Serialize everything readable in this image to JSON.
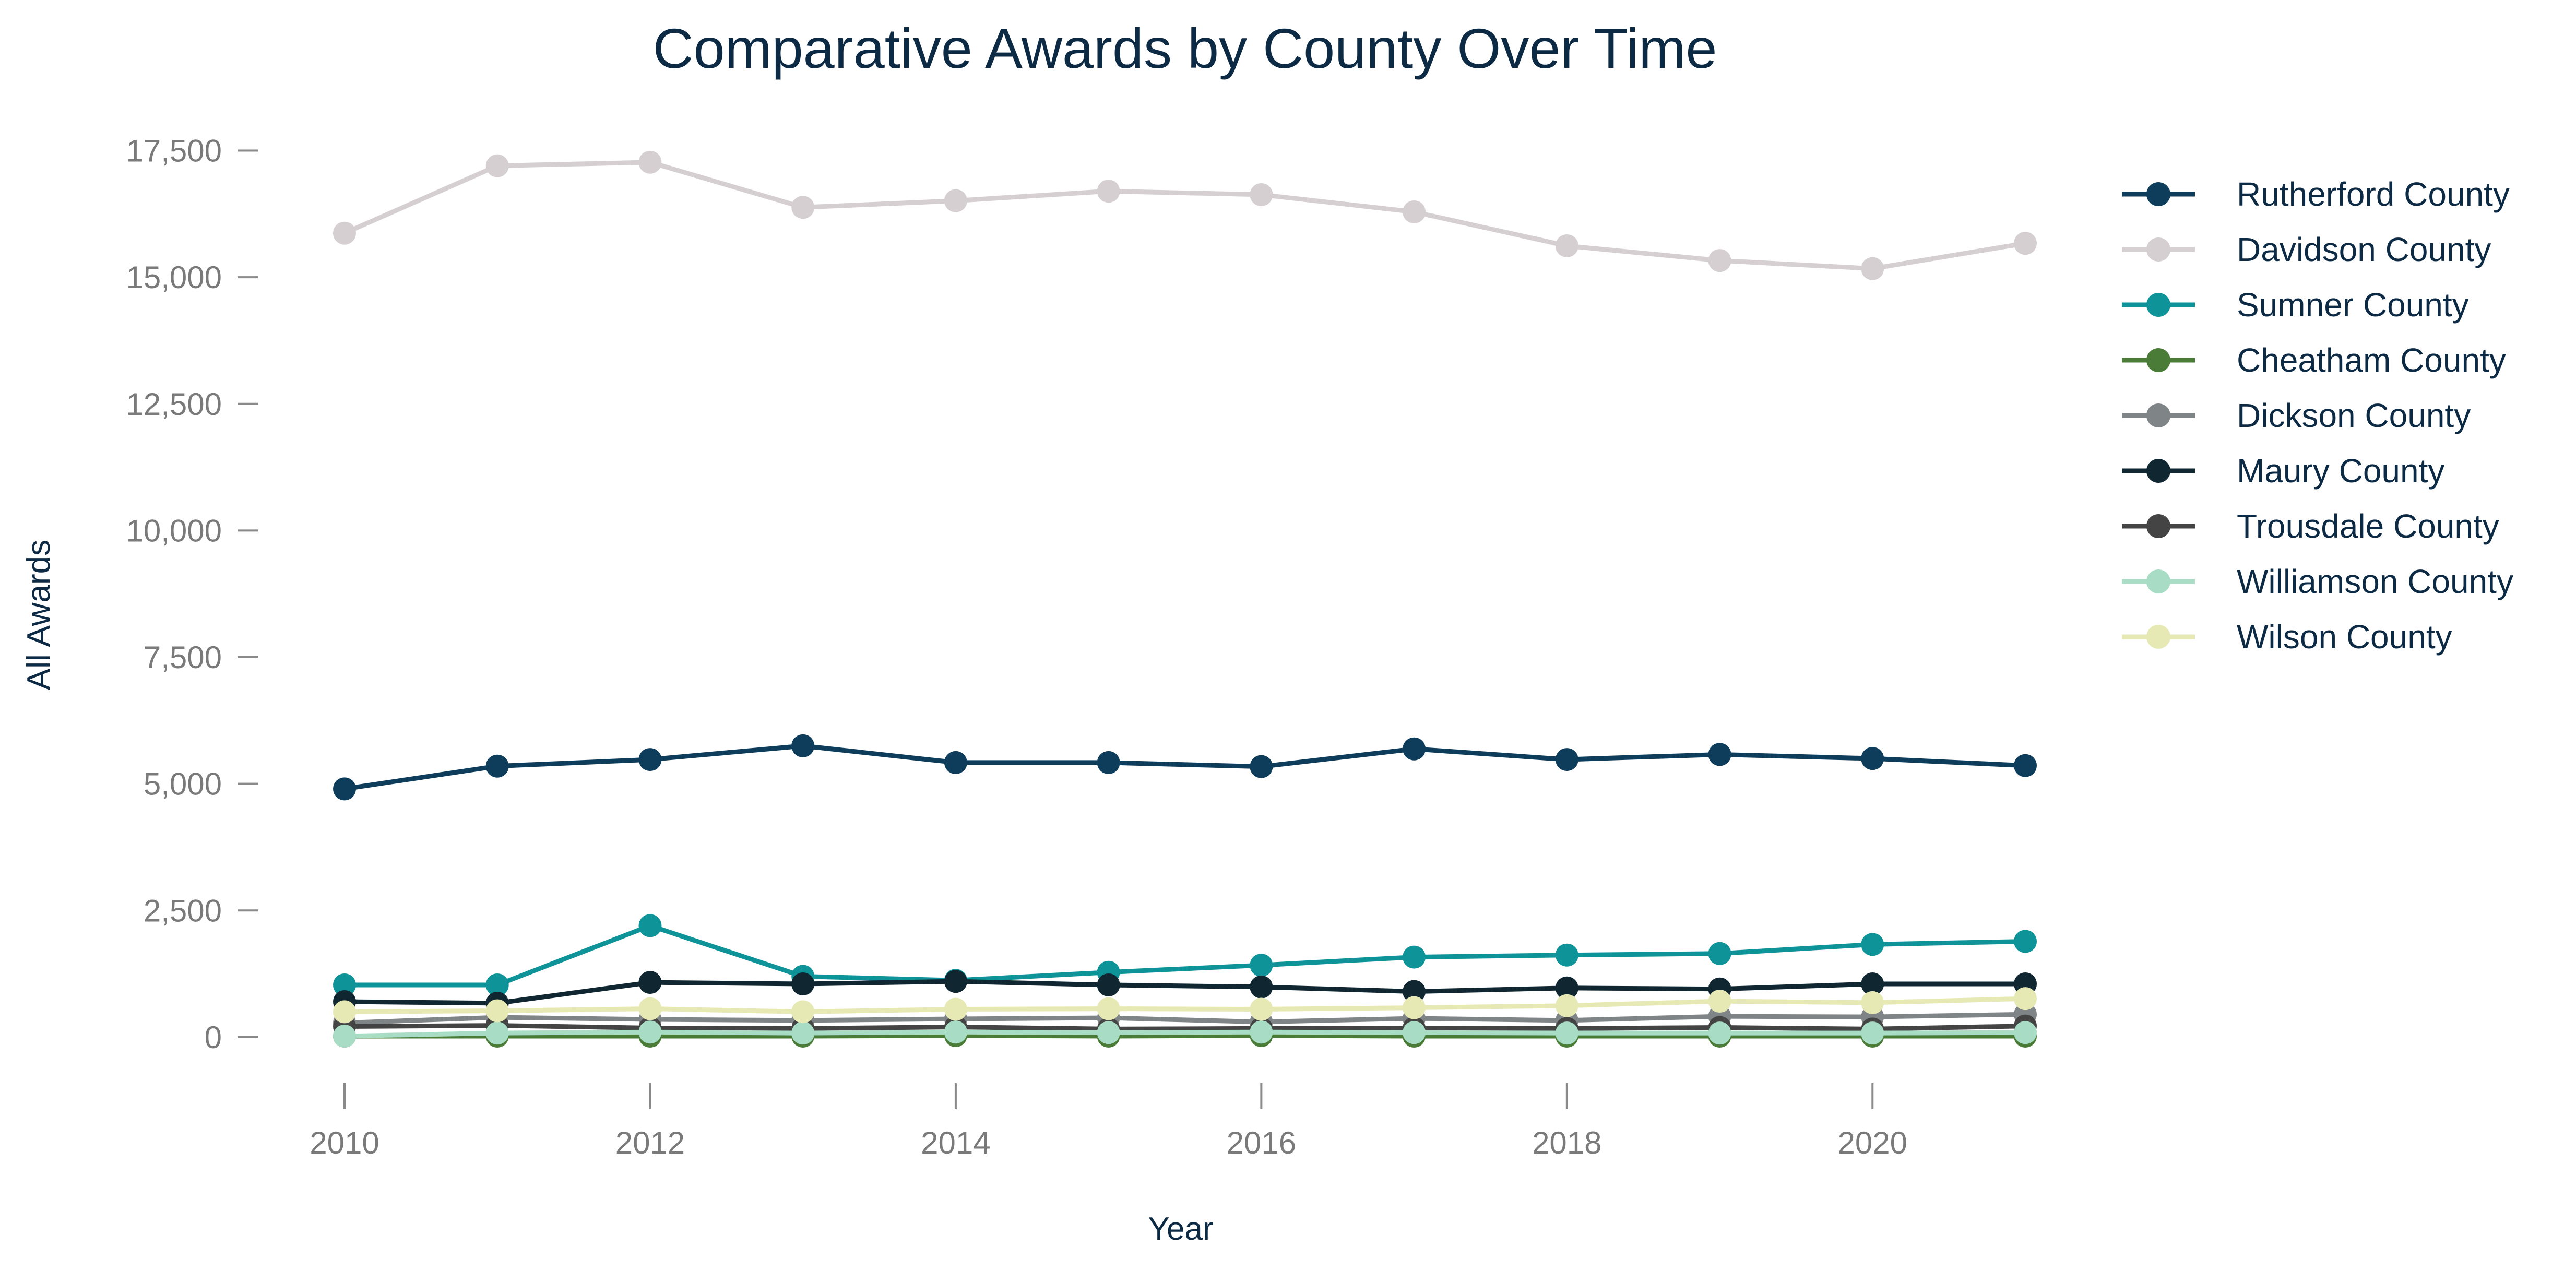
{
  "chart_data": {
    "type": "line",
    "title": "Comparative Awards by County Over Time",
    "xlabel": "Year",
    "ylabel": "All Awards",
    "x": [
      2010,
      2011,
      2012,
      2013,
      2014,
      2015,
      2016,
      2017,
      2018,
      2019,
      2020,
      2021
    ],
    "x_ticks": [
      "2010",
      "2012",
      "2014",
      "2016",
      "2018",
      "2020"
    ],
    "y_ticks": [
      "0",
      "2,500",
      "5,000",
      "7,500",
      "10,000",
      "12,500",
      "15,000",
      "17,500"
    ],
    "xlim": [
      2010,
      2021
    ],
    "ylim": [
      -650,
      18000
    ],
    "grid": false,
    "legend_position": "right",
    "series": [
      {
        "name": "Rutherford County",
        "color": "#0e3d5c",
        "values": [
          4900,
          5350,
          5480,
          5750,
          5420,
          5420,
          5340,
          5690,
          5480,
          5580,
          5500,
          5360
        ]
      },
      {
        "name": "Davidson County",
        "color": "#d6cfd2",
        "values": [
          15870,
          17200,
          17270,
          16380,
          16510,
          16700,
          16630,
          16290,
          15620,
          15330,
          15170,
          15670
        ]
      },
      {
        "name": "Sumner County",
        "color": "#0e9399",
        "values": [
          1030,
          1030,
          2200,
          1200,
          1120,
          1280,
          1420,
          1580,
          1620,
          1650,
          1830,
          1890
        ]
      },
      {
        "name": "Cheatham County",
        "color": "#4a7c38",
        "values": [
          20,
          20,
          20,
          20,
          30,
          20,
          30,
          20,
          20,
          20,
          20,
          20
        ]
      },
      {
        "name": "Dickson County",
        "color": "#7f8587",
        "values": [
          280,
          390,
          350,
          330,
          360,
          380,
          300,
          370,
          330,
          410,
          400,
          450
        ]
      },
      {
        "name": "Maury County",
        "color": "#102731",
        "values": [
          700,
          670,
          1080,
          1050,
          1100,
          1030,
          990,
          900,
          970,
          950,
          1050,
          1050
        ]
      },
      {
        "name": "Trousdale County",
        "color": "#444444",
        "values": [
          210,
          230,
          180,
          170,
          200,
          160,
          170,
          180,
          170,
          190,
          160,
          220
        ]
      },
      {
        "name": "Williamson County",
        "color": "#a8dcc4",
        "values": [
          20,
          80,
          100,
          80,
          100,
          90,
          100,
          90,
          80,
          80,
          80,
          90
        ]
      },
      {
        "name": "Wilson County",
        "color": "#e6e9b4",
        "values": [
          500,
          520,
          560,
          500,
          550,
          560,
          550,
          580,
          620,
          710,
          680,
          760
        ]
      }
    ]
  }
}
